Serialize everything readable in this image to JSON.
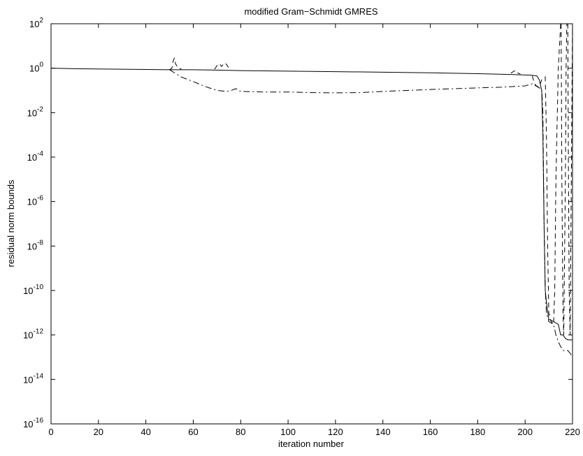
{
  "chart_data": {
    "type": "line",
    "title": "modified Gram−Schmidt GMRES",
    "xlabel": "iteration number",
    "ylabel": "residual norm bounds",
    "xlim": [
      0,
      220
    ],
    "ylim_exponent": [
      -16,
      2
    ],
    "yscale": "log",
    "grid": false,
    "x_ticks": [
      0,
      20,
      40,
      60,
      80,
      100,
      120,
      140,
      160,
      180,
      200,
      220
    ],
    "y_tick_exponents": [
      -16,
      -14,
      -12,
      -10,
      -8,
      -6,
      -4,
      -2,
      0,
      2
    ],
    "y_tick_base": "10",
    "series": [
      {
        "style": "solid",
        "points": [
          [
            0,
            1.0
          ],
          [
            10,
            0.95
          ],
          [
            30,
            0.9
          ],
          [
            50,
            0.85
          ],
          [
            60,
            0.85
          ],
          [
            70,
            0.82
          ],
          [
            80,
            0.78
          ],
          [
            100,
            0.74
          ],
          [
            120,
            0.7
          ],
          [
            140,
            0.66
          ],
          [
            160,
            0.62
          ],
          [
            180,
            0.57
          ],
          [
            195,
            0.52
          ],
          [
            203,
            0.48
          ],
          [
            205,
            0.45
          ],
          [
            206,
            0.3
          ],
          [
            207,
            0.1
          ],
          [
            207.5,
            0.001
          ],
          [
            208,
            1e-07
          ],
          [
            208.5,
            1e-10
          ],
          [
            209,
            3e-11
          ],
          [
            210,
            5e-12
          ],
          [
            212,
            4e-12
          ],
          [
            214,
            3e-12
          ],
          [
            215,
            1e-12
          ],
          [
            216,
            1e-12
          ],
          [
            217,
            7e-13
          ],
          [
            218,
            6e-13
          ],
          [
            219,
            6e-13
          ],
          [
            220,
            6e-13
          ]
        ]
      },
      {
        "style": "dashed",
        "segments": [
          [
            [
              50,
              0.85
            ],
            [
              51,
              1.0
            ],
            [
              51.5,
              2.0
            ],
            [
              52,
              2.8
            ],
            [
              52.5,
              1.6
            ],
            [
              53,
              1.3
            ],
            [
              54,
              1.0
            ],
            [
              55,
              0.9
            ]
          ],
          [
            [
              69,
              0.9
            ],
            [
              70,
              1.3
            ],
            [
              71,
              1.6
            ],
            [
              72,
              1.2
            ],
            [
              73,
              1.7
            ],
            [
              74,
              1.5
            ],
            [
              75,
              1.0
            ]
          ],
          [
            [
              194,
              0.6
            ],
            [
              195,
              0.7
            ],
            [
              196,
              0.8
            ],
            [
              197,
              0.6
            ],
            [
              198,
              0.55
            ]
          ],
          [
            [
              203,
              0.45
            ],
            [
              204,
              0.2
            ],
            [
              205,
              0.15
            ],
            [
              206,
              0.15
            ],
            [
              207,
              0.3
            ],
            [
              208,
              0.35
            ],
            [
              208.5,
              0.4
            ],
            [
              209,
              0.001
            ],
            [
              209.5,
              1e-08
            ],
            [
              210,
              1e-11
            ],
            [
              211,
              4e-12
            ],
            [
              212,
              3e-12
            ],
            [
              212.5,
              1e-10
            ],
            [
              213,
              1e-05
            ],
            [
              214,
              1
            ],
            [
              215,
              100
            ]
          ],
          [
            [
              215.2,
              100
            ],
            [
              215.5,
              1e-05
            ],
            [
              216,
              1e-11
            ],
            [
              216.3,
              1e-12
            ],
            [
              216.6,
              1e-09
            ],
            [
              217,
              1e-05
            ],
            [
              217.3,
              1
            ],
            [
              217.6,
              100
            ]
          ],
          [
            [
              218,
              100
            ],
            [
              218.3,
              1e-05
            ],
            [
              218.6,
              1e-10
            ],
            [
              219,
              1e-12
            ],
            [
              219.5,
              1e-05
            ],
            [
              220,
              100
            ]
          ]
        ]
      },
      {
        "style": "dashdot",
        "points": [
          [
            50,
            0.85
          ],
          [
            55,
            0.4
          ],
          [
            60,
            0.25
          ],
          [
            65,
            0.15
          ],
          [
            70,
            0.1
          ],
          [
            74,
            0.09
          ],
          [
            76,
            0.1
          ],
          [
            78,
            0.12
          ],
          [
            80,
            0.09
          ],
          [
            90,
            0.085
          ],
          [
            100,
            0.085
          ],
          [
            110,
            0.08
          ],
          [
            120,
            0.078
          ],
          [
            130,
            0.08
          ],
          [
            140,
            0.09
          ],
          [
            150,
            0.1
          ],
          [
            160,
            0.11
          ],
          [
            170,
            0.12
          ],
          [
            180,
            0.13
          ],
          [
            190,
            0.14
          ],
          [
            200,
            0.16
          ],
          [
            203,
            0.2
          ],
          [
            205,
            0.15
          ],
          [
            206,
            0.13
          ],
          [
            207,
            0.12
          ],
          [
            207.5,
            0.01
          ],
          [
            208,
            1e-07
          ],
          [
            208.5,
            1e-10
          ],
          [
            209,
            1e-11
          ],
          [
            210,
            4e-12
          ],
          [
            212,
            3e-12
          ],
          [
            213,
            1e-12
          ],
          [
            214,
            5e-13
          ],
          [
            215,
            3e-13
          ],
          [
            216,
            2e-13
          ],
          [
            218,
            2e-13
          ],
          [
            219,
            1.5e-13
          ],
          [
            220,
            1e-13
          ]
        ]
      }
    ]
  }
}
